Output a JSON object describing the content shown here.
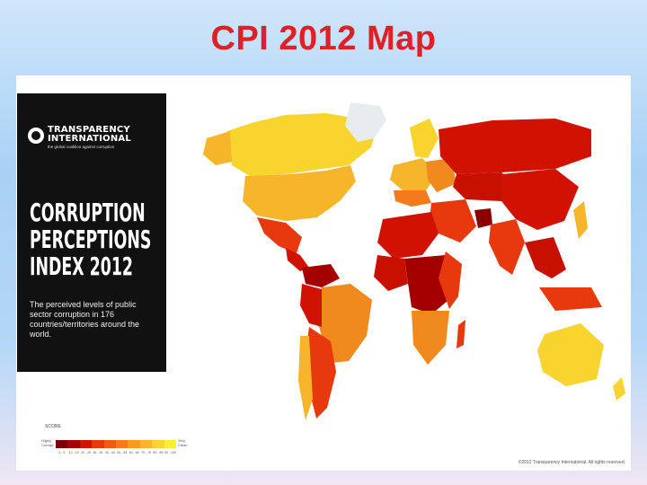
{
  "slide": {
    "title": "CPI 2012 Map"
  },
  "logo": {
    "line1": "TRANSPARENCY",
    "line2": "INTERNATIONAL",
    "tagline": "the global coalition against corruption"
  },
  "heading": {
    "line1": "CORRUPTION",
    "line2": "PERCEPTIONS",
    "line3": "INDEX 2012"
  },
  "description": "The perceived levels of public sector corruption in 176 countries/territories around the world.",
  "legend": {
    "title": "SCORE",
    "left_label": "Highly Corrupt",
    "right_label": "Very Clean",
    "ranges": [
      "0 - 9",
      "10 - 19",
      "20 - 29",
      "30 - 39",
      "40 - 49",
      "50 - 59",
      "60 - 69",
      "70 - 79",
      "80 - 89",
      "90 - 100"
    ],
    "colors": [
      "#7a0000",
      "#a40000",
      "#d11200",
      "#e8380d",
      "#ef5a14",
      "#f47a1c",
      "#f59b22",
      "#f6b52a",
      "#f8d530",
      "#fbee39"
    ]
  },
  "copyright": "©2012 Transparency International. All rights reserved.",
  "map_colors": {
    "very_clean": "#f8d52e",
    "clean": "#f6b52a",
    "mid": "#f08a1e",
    "low": "#e8380d",
    "very_low": "#c81000",
    "worst": "#8a0000",
    "greenland": "#e8ecef"
  }
}
